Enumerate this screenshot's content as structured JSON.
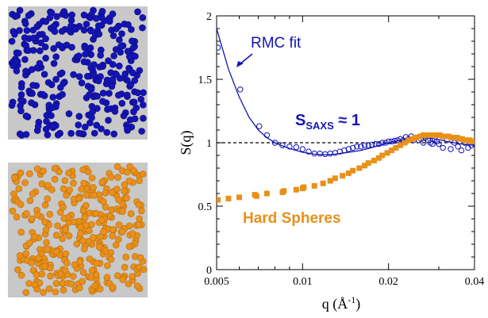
{
  "panels": {
    "top": {
      "name": "rmc-configuration-panel",
      "background": "#c8c8c8",
      "particle_color": "#1414b4"
    },
    "bottom": {
      "name": "hard-sphere-configuration-panel",
      "background": "#c8c8c8",
      "particle_color": "#e8901a"
    }
  },
  "chart_data": {
    "type": "scatter",
    "xscale": "log",
    "xlim": [
      0.005,
      0.04
    ],
    "ylim": [
      0,
      2
    ],
    "xticks": [
      0.005,
      0.01,
      0.02,
      0.04
    ],
    "xtick_labels": [
      "0.005",
      "0.01",
      "0.02",
      "0.04"
    ],
    "yticks": [
      0,
      0.5,
      1,
      1.5,
      2
    ],
    "ytick_labels": [
      "0",
      "0.5",
      "1",
      "1.5",
      "2"
    ],
    "xlabel": "q (Å⁻¹)",
    "ylabel": "S(q)",
    "reference_line": {
      "y": 1,
      "style": "dashed",
      "color": "#000000"
    },
    "series": [
      {
        "name": "RMC fit",
        "kind": "line",
        "color": "#1414b4",
        "x": [
          0.005,
          0.0055,
          0.006,
          0.0065,
          0.007,
          0.0075,
          0.008,
          0.0085,
          0.009,
          0.0095,
          0.01,
          0.011,
          0.012,
          0.013,
          0.014,
          0.015,
          0.016,
          0.017,
          0.018,
          0.019,
          0.02,
          0.022,
          0.024,
          0.026,
          0.028,
          0.03,
          0.032,
          0.034,
          0.036,
          0.038,
          0.04
        ],
        "y": [
          1.9,
          1.58,
          1.36,
          1.2,
          1.1,
          1.04,
          1.0,
          0.975,
          0.955,
          0.94,
          0.925,
          0.91,
          0.905,
          0.91,
          0.92,
          0.93,
          0.94,
          0.955,
          0.97,
          0.985,
          1.0,
          1.02,
          1.035,
          1.04,
          1.035,
          1.025,
          1.01,
          1.0,
          0.99,
          0.985,
          0.98
        ]
      },
      {
        "name": "",
        "kind": "markers",
        "marker": "open-circle",
        "color": "#1414b4",
        "x": [
          0.00505,
          0.00605,
          0.00705,
          0.0075,
          0.008,
          0.0085,
          0.009,
          0.0095,
          0.01,
          0.0105,
          0.011,
          0.0115,
          0.012,
          0.0125,
          0.013,
          0.0135,
          0.014,
          0.0145,
          0.015,
          0.0155,
          0.016,
          0.0165,
          0.017,
          0.0175,
          0.018,
          0.0185,
          0.019,
          0.0195,
          0.02,
          0.0205,
          0.021,
          0.0215,
          0.022,
          0.0225,
          0.023,
          0.0235,
          0.024,
          0.0245,
          0.025,
          0.0255,
          0.026,
          0.0265,
          0.027,
          0.0275,
          0.028,
          0.0285,
          0.029,
          0.0295,
          0.03,
          0.031,
          0.032,
          0.033,
          0.034,
          0.035,
          0.036,
          0.037,
          0.038,
          0.039,
          0.04
        ],
        "y": [
          1.75,
          1.42,
          1.13,
          1.06,
          1.0,
          0.98,
          0.97,
          0.965,
          0.95,
          0.93,
          0.915,
          0.915,
          0.91,
          0.915,
          0.92,
          0.93,
          0.94,
          0.95,
          0.96,
          0.97,
          0.97,
          0.98,
          0.98,
          0.985,
          0.99,
          0.99,
          1.0,
          1.0,
          1.01,
          1.01,
          1.015,
          1.02,
          1.03,
          1.02,
          1.045,
          1.03,
          1.05,
          1.02,
          1.04,
          1.02,
          1.03,
          1.0,
          1.04,
          1.02,
          1.0,
          0.99,
          1.03,
          1.01,
          0.99,
          0.96,
          1.02,
          0.95,
          1.0,
          0.97,
          0.94,
          1.0,
          0.96,
          0.98,
          0.99
        ]
      },
      {
        "name": "Hard Spheres",
        "kind": "markers",
        "marker": "filled-square",
        "color": "#e8901a",
        "x": [
          0.00505,
          0.0055,
          0.006,
          0.0068,
          0.0069,
          0.0075,
          0.0085,
          0.0086,
          0.0095,
          0.01,
          0.0101,
          0.011,
          0.0118,
          0.0125,
          0.013,
          0.0138,
          0.0145,
          0.015,
          0.0158,
          0.0165,
          0.017,
          0.0178,
          0.0185,
          0.019,
          0.0198,
          0.0205,
          0.0212,
          0.022,
          0.0228,
          0.0235,
          0.0242,
          0.025,
          0.0258,
          0.0265,
          0.0272,
          0.028,
          0.0288,
          0.0295,
          0.0302,
          0.031,
          0.0318,
          0.0325,
          0.0332,
          0.034,
          0.0348,
          0.0355,
          0.0362,
          0.037,
          0.0378,
          0.0385,
          0.0392,
          0.04
        ],
        "y": [
          0.55,
          0.56,
          0.57,
          0.59,
          0.58,
          0.6,
          0.61,
          0.62,
          0.63,
          0.64,
          0.65,
          0.66,
          0.68,
          0.7,
          0.72,
          0.74,
          0.76,
          0.78,
          0.8,
          0.82,
          0.84,
          0.86,
          0.88,
          0.9,
          0.92,
          0.94,
          0.96,
          0.98,
          1.0,
          1.02,
          1.03,
          1.04,
          1.05,
          1.06,
          1.06,
          1.06,
          1.06,
          1.06,
          1.06,
          1.05,
          1.05,
          1.05,
          1.04,
          1.04,
          1.04,
          1.03,
          1.03,
          1.02,
          1.02,
          1.02,
          1.01,
          1.01
        ]
      }
    ],
    "annotations": [
      {
        "text": "RMC fit",
        "color": "#1414b4"
      },
      {
        "text": "S",
        "sub": "SAXS",
        "suffix": " ≈ 1",
        "color": "#1414b4"
      },
      {
        "text": "Hard Spheres",
        "color": "#e8901a"
      }
    ]
  }
}
